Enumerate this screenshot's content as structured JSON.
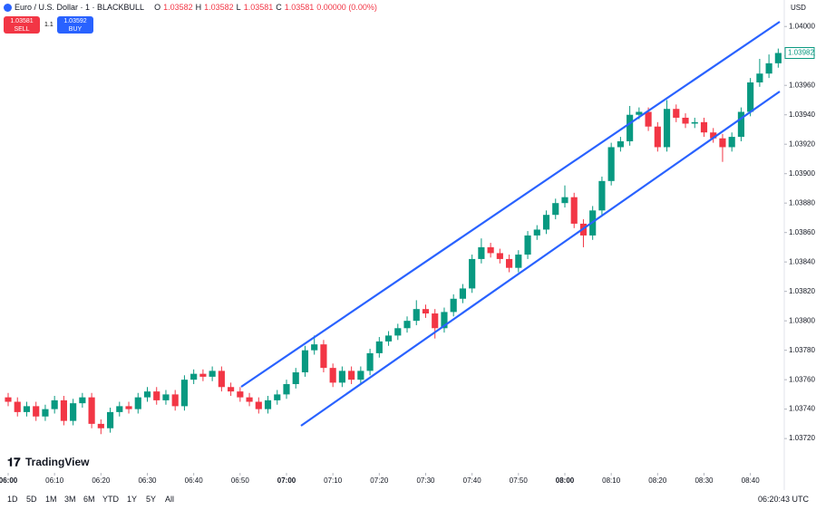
{
  "ui": {
    "symbol": "Euro / U.S. Dollar · 1 · BLACKBULL",
    "o_label": "O",
    "o": "1.03582",
    "h_label": "H",
    "h": "1.03582",
    "l_label": "L",
    "l": "1.03581",
    "c_label": "C",
    "c": "1.03581",
    "change": "0.00000 (0.00%)",
    "sell_price": "1.03581",
    "sell": "SELL",
    "spread": "1.1",
    "buy_price": "1.03592",
    "buy": "BUY",
    "currency": "USD",
    "logo": "TradingView",
    "ranges": [
      "1D",
      "5D",
      "1M",
      "3M",
      "6M",
      "YTD",
      "1Y",
      "5Y",
      "All"
    ],
    "clock": "06:20:43 UTC"
  },
  "chart_data": {
    "type": "candlestick",
    "up_color": "#089981",
    "down_color": "#f23645",
    "x": [
      0,
      2,
      4,
      6,
      8,
      10,
      12,
      14,
      16,
      18,
      20,
      22,
      24,
      26,
      28,
      30,
      32,
      34,
      36,
      38,
      40,
      42,
      44,
      46,
      48,
      50,
      52,
      54,
      56,
      58,
      60,
      62,
      64,
      66,
      68,
      70,
      72,
      74,
      76,
      78,
      80,
      82,
      84,
      86,
      88,
      90,
      92,
      94,
      96,
      98,
      100,
      102,
      104,
      106,
      108,
      110,
      112,
      114,
      116,
      118,
      120,
      122,
      124,
      126,
      128,
      130,
      132,
      134,
      136,
      138,
      140,
      142,
      144,
      146,
      148,
      150,
      152,
      154,
      156,
      158,
      160,
      162,
      164,
      166
    ],
    "open": [
      1.03748,
      1.03745,
      1.03738,
      1.03742,
      1.03735,
      1.0374,
      1.03746,
      1.03732,
      1.03744,
      1.03748,
      1.0373,
      1.03727,
      1.03738,
      1.03742,
      1.0374,
      1.03748,
      1.03752,
      1.03746,
      1.0375,
      1.03742,
      1.0376,
      1.03764,
      1.03762,
      1.03766,
      1.03755,
      1.03752,
      1.03748,
      1.03745,
      1.0374,
      1.03746,
      1.0375,
      1.03757,
      1.03765,
      1.0378,
      1.03784,
      1.03768,
      1.03758,
      1.03766,
      1.0376,
      1.03766,
      1.03778,
      1.03786,
      1.0379,
      1.03795,
      1.038,
      1.03808,
      1.03805,
      1.03795,
      1.03806,
      1.03815,
      1.03822,
      1.03842,
      1.0385,
      1.03846,
      1.03842,
      1.03836,
      1.03845,
      1.03858,
      1.03862,
      1.03872,
      1.0388,
      1.03884,
      1.03866,
      1.03858,
      1.03875,
      1.03895,
      1.03918,
      1.03922,
      1.0394,
      1.03942,
      1.03932,
      1.03918,
      1.03944,
      1.03938,
      1.03934,
      1.03935,
      1.03928,
      1.03924,
      1.03918,
      1.03925,
      1.03942,
      1.03962,
      1.03968,
      1.03975
    ],
    "high": [
      1.03751,
      1.03748,
      1.03745,
      1.03745,
      1.03743,
      1.03749,
      1.03749,
      1.03747,
      1.03751,
      1.03751,
      1.03733,
      1.03741,
      1.03745,
      1.03745,
      1.03751,
      1.03755,
      1.03755,
      1.03753,
      1.03753,
      1.03763,
      1.03767,
      1.03767,
      1.03769,
      1.03769,
      1.03758,
      1.03755,
      1.03751,
      1.03748,
      1.03749,
      1.03753,
      1.0376,
      1.03768,
      1.03783,
      1.0379,
      1.03787,
      1.03771,
      1.03769,
      1.03769,
      1.03769,
      1.03781,
      1.03789,
      1.03793,
      1.03798,
      1.03803,
      1.03814,
      1.03811,
      1.03808,
      1.03809,
      1.03818,
      1.03825,
      1.03845,
      1.03856,
      1.03853,
      1.03849,
      1.03845,
      1.03848,
      1.03861,
      1.03865,
      1.03875,
      1.03883,
      1.03892,
      1.03887,
      1.03869,
      1.03878,
      1.03898,
      1.03921,
      1.03925,
      1.03946,
      1.03945,
      1.03945,
      1.03935,
      1.0395,
      1.03947,
      1.03941,
      1.03938,
      1.03938,
      1.03931,
      1.03927,
      1.03928,
      1.03945,
      1.03965,
      1.03978,
      1.03981,
      1.03985
    ],
    "low": [
      1.03742,
      1.03735,
      1.03735,
      1.03732,
      1.03732,
      1.03737,
      1.03729,
      1.03729,
      1.03741,
      1.03727,
      1.03723,
      1.03724,
      1.03735,
      1.03737,
      1.03737,
      1.03745,
      1.03743,
      1.03743,
      1.03739,
      1.03739,
      1.03757,
      1.03759,
      1.03759,
      1.03752,
      1.03749,
      1.03745,
      1.03742,
      1.03737,
      1.03737,
      1.03743,
      1.03747,
      1.03754,
      1.03762,
      1.03777,
      1.03765,
      1.03755,
      1.03755,
      1.03757,
      1.03757,
      1.03763,
      1.03775,
      1.03783,
      1.03787,
      1.03792,
      1.03797,
      1.03802,
      1.03788,
      1.03792,
      1.03803,
      1.03812,
      1.03819,
      1.03839,
      1.03843,
      1.03839,
      1.03833,
      1.03833,
      1.03842,
      1.03855,
      1.03859,
      1.03869,
      1.03877,
      1.03863,
      1.0385,
      1.03855,
      1.03872,
      1.03892,
      1.03915,
      1.03919,
      1.03937,
      1.03929,
      1.03915,
      1.03915,
      1.03935,
      1.03931,
      1.03931,
      1.03925,
      1.03921,
      1.03908,
      1.03915,
      1.03922,
      1.03939,
      1.03959,
      1.03965,
      1.03972
    ],
    "close": [
      1.03745,
      1.03738,
      1.03742,
      1.03735,
      1.0374,
      1.03746,
      1.03732,
      1.03744,
      1.03748,
      1.0373,
      1.03727,
      1.03738,
      1.03742,
      1.0374,
      1.03748,
      1.03752,
      1.03746,
      1.0375,
      1.03742,
      1.0376,
      1.03764,
      1.03762,
      1.03766,
      1.03755,
      1.03752,
      1.03748,
      1.03745,
      1.0374,
      1.03746,
      1.0375,
      1.03757,
      1.03765,
      1.0378,
      1.03784,
      1.03768,
      1.03758,
      1.03766,
      1.0376,
      1.03766,
      1.03778,
      1.03786,
      1.0379,
      1.03795,
      1.038,
      1.03808,
      1.03805,
      1.03795,
      1.03806,
      1.03815,
      1.03822,
      1.03842,
      1.0385,
      1.03846,
      1.03842,
      1.03836,
      1.03845,
      1.03858,
      1.03862,
      1.03872,
      1.0388,
      1.03884,
      1.03866,
      1.03858,
      1.03875,
      1.03895,
      1.03918,
      1.03922,
      1.0394,
      1.03942,
      1.03932,
      1.03918,
      1.03944,
      1.03938,
      1.03934,
      1.03935,
      1.03928,
      1.03924,
      1.03918,
      1.03925,
      1.03942,
      1.03962,
      1.03968,
      1.03975,
      1.03982
    ],
    "last_price": 1.03982,
    "xlim": [
      -1.76,
      167.3
    ],
    "xticks": [
      {
        "value": 0,
        "label": "06:00"
      },
      {
        "value": 10,
        "label": "06:10"
      },
      {
        "value": 20,
        "label": "06:20"
      },
      {
        "value": 30,
        "label": "06:30"
      },
      {
        "value": 40,
        "label": "06:40"
      },
      {
        "value": 50,
        "label": "06:50"
      },
      {
        "value": 60,
        "label": "07:00"
      },
      {
        "value": 70,
        "label": "07:10"
      },
      {
        "value": 80,
        "label": "07:20"
      },
      {
        "value": 90,
        "label": "07:30"
      },
      {
        "value": 100,
        "label": "07:40"
      },
      {
        "value": 110,
        "label": "07:50"
      },
      {
        "value": 120,
        "label": "08:00"
      },
      {
        "value": 130,
        "label": "08:10"
      },
      {
        "value": 140,
        "label": "08:20"
      },
      {
        "value": 150,
        "label": "08:30"
      },
      {
        "value": 160,
        "label": "08:40"
      }
    ],
    "ylim": [
      1.03701,
      1.04018
    ],
    "yticks": [
      {
        "value": 1.0372,
        "label": "1.03720"
      },
      {
        "value": 1.0374,
        "label": "1.03740"
      },
      {
        "value": 1.0376,
        "label": "1.03760"
      },
      {
        "value": 1.0378,
        "label": "1.03780"
      },
      {
        "value": 1.038,
        "label": "1.03800"
      },
      {
        "value": 1.0382,
        "label": "1.03820"
      },
      {
        "value": 1.0384,
        "label": "1.03840"
      },
      {
        "value": 1.0386,
        "label": "1.03860"
      },
      {
        "value": 1.0388,
        "label": "1.03880"
      },
      {
        "value": 1.039,
        "label": "1.03900"
      },
      {
        "value": 1.0392,
        "label": "1.03920"
      },
      {
        "value": 1.0394,
        "label": "1.03940"
      },
      {
        "value": 1.0396,
        "label": "1.03960"
      },
      {
        "value": 1.0398,
        "label": "1.03980"
      },
      {
        "value": 1.04,
        "label": "1.04000"
      }
    ]
  }
}
